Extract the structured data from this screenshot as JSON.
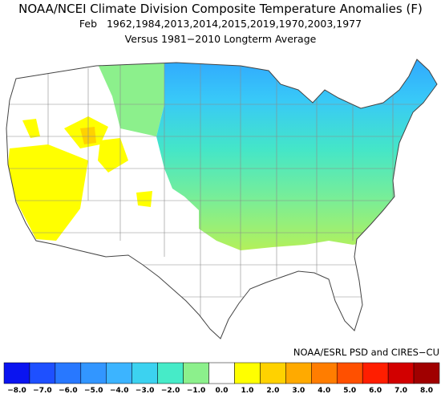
{
  "title": "NOAA/NCEI Climate Division Composite Temperature Anomalies (F)",
  "subtitle": "Feb   1962,1984,2013,2014,2015,2019,1970,2003,1977",
  "subtitle2": "Versus 1981−2010 Longterm Average",
  "credit": "NOAA/ESRL PSD and CIRES−CU",
  "colorbar": {
    "colors": [
      "#0a14f0",
      "#1e50ff",
      "#2878ff",
      "#3296ff",
      "#3cb4ff",
      "#3cd2f0",
      "#46ebc8",
      "#8cf08c",
      "#ffffff",
      "#ffff00",
      "#ffd200",
      "#ffaa00",
      "#ff7d00",
      "#ff5000",
      "#ff1e00",
      "#d20000",
      "#a00000"
    ],
    "ticks": [
      {
        "value": -8,
        "label": "−8.0"
      },
      {
        "value": -7,
        "label": "−7.0"
      },
      {
        "value": -6,
        "label": "−6.0"
      },
      {
        "value": -5,
        "label": "−5.0"
      },
      {
        "value": -4,
        "label": "−4.0"
      },
      {
        "value": -3,
        "label": "−3.0"
      },
      {
        "value": -2,
        "label": "−2.0"
      },
      {
        "value": -1,
        "label": "−1.0"
      },
      {
        "value": 0,
        "label": "0.0"
      },
      {
        "value": 1,
        "label": "1.0"
      },
      {
        "value": 2,
        "label": "2.0"
      },
      {
        "value": 3,
        "label": "3.0"
      },
      {
        "value": 4,
        "label": "4.0"
      },
      {
        "value": 5,
        "label": "5.0"
      },
      {
        "value": 6,
        "label": "6.0"
      },
      {
        "value": 7,
        "label": "7.0"
      },
      {
        "value": 8,
        "label": "8.0"
      }
    ]
  }
}
